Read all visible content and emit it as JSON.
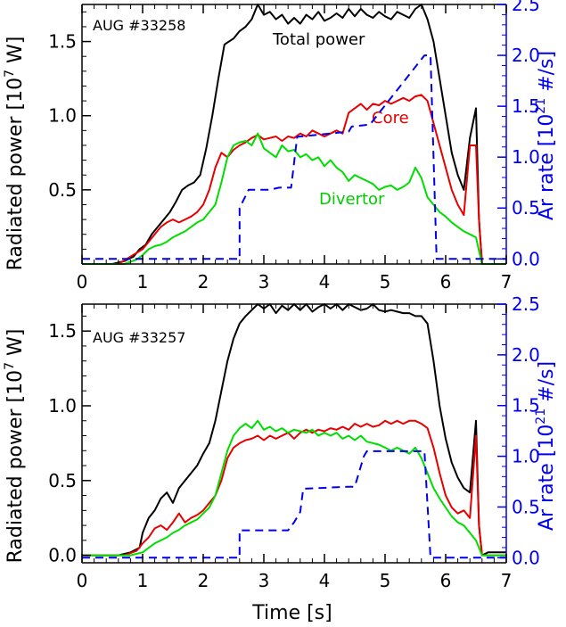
{
  "colors": {
    "total": "#000000",
    "core": "#e60000",
    "divertor": "#00dd00",
    "ar": "#0000ee",
    "axis": "#000000",
    "axis_right": "#0000ee"
  },
  "x_axis_label": "Time [s]",
  "y_left_label_parts": [
    "Radiated power [10",
    "7",
    " W]"
  ],
  "y_right_label_parts": [
    "Ar rate [10",
    "21",
    " #/s]"
  ],
  "chart_data": [
    {
      "type": "line",
      "title": "AUG #33258",
      "xlim": [
        0,
        7
      ],
      "ylim_left": [
        0,
        1.75
      ],
      "ylim_right": [
        -0.05,
        2.5
      ],
      "x_ticks": [
        "0",
        "1",
        "2",
        "3",
        "4",
        "5",
        "6",
        "7"
      ],
      "y_left_ticks": [
        "0.5",
        "1.0",
        "1.5"
      ],
      "y_right_ticks": [
        "0.0",
        "0.5",
        "1.0",
        "1.5",
        "2.0",
        "2.5"
      ],
      "series_labels": {
        "total": "Total power",
        "core": "Core",
        "divertor": "Divertor"
      },
      "series": [
        {
          "key": "total",
          "axis": "left",
          "dash": false,
          "x": [
            0.0,
            0.5,
            0.7,
            0.85,
            0.95,
            1.05,
            1.15,
            1.25,
            1.35,
            1.45,
            1.55,
            1.65,
            1.75,
            1.85,
            1.95,
            2.05,
            2.15,
            2.25,
            2.35,
            2.5,
            2.6,
            2.7,
            2.8,
            2.9,
            3.0,
            3.1,
            3.2,
            3.3,
            3.4,
            3.5,
            3.6,
            3.7,
            3.8,
            3.9,
            4.0,
            4.1,
            4.2,
            4.3,
            4.4,
            4.5,
            4.6,
            4.7,
            4.8,
            4.9,
            5.0,
            5.1,
            5.2,
            5.3,
            5.4,
            5.5,
            5.6,
            5.7,
            5.8,
            5.9,
            6.0,
            6.1,
            6.2,
            6.3,
            6.4,
            6.5,
            6.55,
            6.6,
            7.0
          ],
          "y": [
            0.0,
            0.0,
            0.02,
            0.05,
            0.1,
            0.13,
            0.2,
            0.25,
            0.3,
            0.35,
            0.42,
            0.5,
            0.53,
            0.55,
            0.6,
            0.78,
            1.0,
            1.25,
            1.48,
            1.52,
            1.57,
            1.6,
            1.65,
            1.75,
            1.68,
            1.7,
            1.65,
            1.68,
            1.62,
            1.66,
            1.62,
            1.68,
            1.65,
            1.7,
            1.64,
            1.66,
            1.69,
            1.66,
            1.72,
            1.67,
            1.72,
            1.68,
            1.66,
            1.7,
            1.67,
            1.65,
            1.7,
            1.68,
            1.66,
            1.72,
            1.75,
            1.65,
            1.5,
            1.25,
            1.0,
            0.75,
            0.6,
            0.5,
            0.85,
            1.05,
            0.3,
            0.0,
            0.0
          ]
        },
        {
          "key": "core",
          "axis": "left",
          "dash": false,
          "x": [
            0.0,
            0.6,
            0.8,
            1.0,
            1.1,
            1.2,
            1.3,
            1.4,
            1.5,
            1.6,
            1.7,
            1.8,
            1.9,
            2.0,
            2.1,
            2.2,
            2.3,
            2.4,
            2.5,
            2.6,
            2.7,
            2.8,
            2.9,
            3.0,
            3.1,
            3.2,
            3.3,
            3.4,
            3.5,
            3.6,
            3.7,
            3.8,
            3.9,
            4.0,
            4.1,
            4.2,
            4.3,
            4.4,
            4.5,
            4.6,
            4.7,
            4.8,
            4.9,
            5.0,
            5.1,
            5.2,
            5.3,
            5.4,
            5.5,
            5.6,
            5.7,
            5.8,
            5.9,
            6.0,
            6.1,
            6.2,
            6.3,
            6.4,
            6.5,
            6.55,
            6.6,
            7.0
          ],
          "y": [
            0.0,
            0.0,
            0.05,
            0.1,
            0.15,
            0.2,
            0.25,
            0.28,
            0.3,
            0.28,
            0.3,
            0.32,
            0.35,
            0.4,
            0.5,
            0.65,
            0.75,
            0.72,
            0.77,
            0.8,
            0.82,
            0.85,
            0.87,
            0.84,
            0.85,
            0.86,
            0.83,
            0.86,
            0.85,
            0.88,
            0.86,
            0.9,
            0.88,
            0.86,
            0.88,
            0.9,
            0.88,
            1.02,
            1.05,
            1.08,
            1.04,
            1.08,
            1.07,
            1.1,
            1.08,
            1.1,
            1.12,
            1.1,
            1.13,
            1.14,
            1.1,
            0.95,
            0.8,
            0.65,
            0.5,
            0.4,
            0.33,
            0.8,
            0.8,
            0.3,
            0.0,
            0.0
          ]
        },
        {
          "key": "divertor",
          "axis": "left",
          "dash": false,
          "x": [
            0.0,
            0.7,
            0.9,
            1.0,
            1.1,
            1.2,
            1.3,
            1.4,
            1.5,
            1.6,
            1.7,
            1.8,
            1.9,
            2.0,
            2.1,
            2.2,
            2.3,
            2.4,
            2.5,
            2.6,
            2.7,
            2.8,
            2.9,
            3.0,
            3.1,
            3.2,
            3.3,
            3.4,
            3.5,
            3.6,
            3.7,
            3.8,
            3.9,
            4.0,
            4.1,
            4.2,
            4.3,
            4.4,
            4.5,
            4.6,
            4.7,
            4.8,
            4.9,
            5.0,
            5.1,
            5.2,
            5.3,
            5.4,
            5.5,
            5.6,
            5.7,
            5.8,
            5.9,
            6.0,
            6.1,
            6.2,
            6.3,
            6.4,
            6.5,
            6.6,
            7.0
          ],
          "y": [
            0.0,
            0.0,
            0.03,
            0.06,
            0.1,
            0.12,
            0.13,
            0.15,
            0.18,
            0.2,
            0.22,
            0.25,
            0.28,
            0.3,
            0.35,
            0.4,
            0.55,
            0.72,
            0.8,
            0.82,
            0.83,
            0.8,
            0.88,
            0.78,
            0.75,
            0.72,
            0.8,
            0.76,
            0.77,
            0.72,
            0.74,
            0.7,
            0.72,
            0.66,
            0.7,
            0.65,
            0.62,
            0.56,
            0.6,
            0.58,
            0.56,
            0.54,
            0.5,
            0.52,
            0.53,
            0.5,
            0.52,
            0.55,
            0.65,
            0.58,
            0.45,
            0.4,
            0.35,
            0.32,
            0.28,
            0.25,
            0.22,
            0.2,
            0.18,
            0.0,
            0.0
          ]
        },
        {
          "key": "ar",
          "axis": "right",
          "dash": true,
          "x": [
            0.0,
            2.6,
            2.6,
            2.75,
            3.1,
            3.25,
            3.45,
            3.55,
            4.4,
            4.45,
            4.75,
            5.65,
            5.75,
            5.85,
            7.0
          ],
          "y": [
            0.0,
            0.0,
            0.5,
            0.68,
            0.68,
            0.7,
            0.7,
            1.2,
            1.25,
            1.3,
            1.32,
            2.0,
            2.0,
            0.0,
            0.0
          ]
        }
      ]
    },
    {
      "type": "line",
      "title": "AUG #33257",
      "xlim": [
        0,
        7
      ],
      "ylim_left": [
        -0.05,
        1.68
      ],
      "ylim_right": [
        -0.05,
        2.5
      ],
      "x_ticks": [
        "0",
        "1",
        "2",
        "3",
        "4",
        "5",
        "6",
        "7"
      ],
      "x_label": "Time [s]",
      "y_left_ticks": [
        "0.0",
        "0.5",
        "1.0",
        "1.5"
      ],
      "y_right_ticks": [
        "0.0",
        "0.5",
        "1.0",
        "1.5",
        "2.0",
        "2.5"
      ],
      "series": [
        {
          "key": "total",
          "axis": "left",
          "dash": false,
          "x": [
            0.0,
            0.6,
            0.8,
            0.95,
            1.0,
            1.1,
            1.2,
            1.3,
            1.4,
            1.5,
            1.6,
            1.7,
            1.8,
            1.9,
            2.0,
            2.1,
            2.2,
            2.3,
            2.4,
            2.5,
            2.6,
            2.7,
            2.8,
            2.9,
            3.0,
            3.1,
            3.2,
            3.3,
            3.4,
            3.5,
            3.6,
            3.7,
            3.8,
            3.9,
            4.0,
            4.1,
            4.2,
            4.3,
            4.4,
            4.5,
            4.6,
            4.7,
            4.8,
            4.9,
            5.0,
            5.1,
            5.2,
            5.3,
            5.4,
            5.5,
            5.6,
            5.7,
            5.8,
            5.9,
            6.0,
            6.1,
            6.2,
            6.3,
            6.4,
            6.5,
            6.55,
            6.6,
            6.7,
            7.0
          ],
          "y": [
            0.0,
            0.0,
            0.02,
            0.05,
            0.15,
            0.25,
            0.3,
            0.38,
            0.42,
            0.35,
            0.45,
            0.5,
            0.55,
            0.6,
            0.68,
            0.75,
            0.9,
            1.1,
            1.3,
            1.45,
            1.55,
            1.6,
            1.64,
            1.68,
            1.65,
            1.68,
            1.62,
            1.67,
            1.64,
            1.68,
            1.64,
            1.68,
            1.63,
            1.66,
            1.68,
            1.65,
            1.68,
            1.64,
            1.68,
            1.66,
            1.64,
            1.65,
            1.68,
            1.64,
            1.63,
            1.64,
            1.63,
            1.62,
            1.62,
            1.6,
            1.6,
            1.55,
            1.3,
            1.0,
            0.78,
            0.62,
            0.52,
            0.45,
            0.42,
            0.9,
            0.2,
            0.0,
            0.02,
            0.02
          ]
        },
        {
          "key": "core",
          "axis": "left",
          "dash": false,
          "x": [
            0.0,
            0.7,
            0.9,
            1.0,
            1.1,
            1.2,
            1.3,
            1.4,
            1.5,
            1.6,
            1.7,
            1.8,
            1.9,
            2.0,
            2.1,
            2.2,
            2.3,
            2.4,
            2.5,
            2.6,
            2.7,
            2.8,
            2.9,
            3.0,
            3.1,
            3.2,
            3.3,
            3.4,
            3.5,
            3.6,
            3.7,
            3.8,
            3.9,
            4.0,
            4.1,
            4.2,
            4.3,
            4.4,
            4.5,
            4.6,
            4.7,
            4.8,
            4.9,
            5.0,
            5.1,
            5.2,
            5.3,
            5.4,
            5.5,
            5.6,
            5.7,
            5.8,
            5.9,
            6.0,
            6.1,
            6.2,
            6.3,
            6.4,
            6.5,
            6.55,
            6.6,
            7.0
          ],
          "y": [
            0.0,
            0.0,
            0.03,
            0.08,
            0.12,
            0.18,
            0.2,
            0.17,
            0.22,
            0.28,
            0.22,
            0.25,
            0.27,
            0.3,
            0.35,
            0.4,
            0.5,
            0.65,
            0.72,
            0.75,
            0.77,
            0.78,
            0.8,
            0.77,
            0.8,
            0.78,
            0.8,
            0.82,
            0.78,
            0.82,
            0.84,
            0.82,
            0.84,
            0.83,
            0.85,
            0.84,
            0.86,
            0.84,
            0.88,
            0.86,
            0.88,
            0.86,
            0.87,
            0.9,
            0.88,
            0.9,
            0.88,
            0.9,
            0.9,
            0.88,
            0.85,
            0.72,
            0.55,
            0.4,
            0.32,
            0.28,
            0.3,
            0.25,
            0.8,
            0.2,
            0.0,
            0.0
          ]
        },
        {
          "key": "divertor",
          "axis": "left",
          "dash": false,
          "x": [
            0.0,
            0.8,
            1.0,
            1.1,
            1.2,
            1.3,
            1.4,
            1.5,
            1.6,
            1.7,
            1.8,
            1.9,
            2.0,
            2.1,
            2.2,
            2.3,
            2.4,
            2.5,
            2.6,
            2.7,
            2.8,
            2.9,
            3.0,
            3.1,
            3.2,
            3.3,
            3.4,
            3.5,
            3.6,
            3.7,
            3.8,
            3.9,
            4.0,
            4.1,
            4.2,
            4.3,
            4.4,
            4.5,
            4.6,
            4.7,
            4.8,
            4.9,
            5.0,
            5.1,
            5.2,
            5.3,
            5.4,
            5.5,
            5.6,
            5.7,
            5.8,
            5.9,
            6.0,
            6.1,
            6.2,
            6.3,
            6.4,
            6.5,
            6.6,
            7.0
          ],
          "y": [
            0.0,
            0.0,
            0.02,
            0.05,
            0.08,
            0.1,
            0.12,
            0.15,
            0.17,
            0.2,
            0.22,
            0.24,
            0.28,
            0.32,
            0.4,
            0.55,
            0.7,
            0.8,
            0.85,
            0.88,
            0.85,
            0.9,
            0.84,
            0.86,
            0.83,
            0.85,
            0.82,
            0.84,
            0.83,
            0.82,
            0.84,
            0.8,
            0.82,
            0.8,
            0.82,
            0.78,
            0.8,
            0.77,
            0.8,
            0.76,
            0.75,
            0.74,
            0.72,
            0.7,
            0.72,
            0.7,
            0.68,
            0.72,
            0.65,
            0.55,
            0.45,
            0.38,
            0.32,
            0.26,
            0.22,
            0.2,
            0.15,
            0.1,
            0.0,
            0.0
          ]
        },
        {
          "key": "ar",
          "axis": "right",
          "dash": true,
          "x": [
            0.0,
            2.6,
            2.6,
            2.7,
            3.4,
            3.5,
            3.6,
            3.65,
            4.4,
            4.5,
            4.65,
            4.7,
            5.6,
            5.65,
            5.75,
            7.0
          ],
          "y": [
            0.0,
            0.0,
            0.27,
            0.27,
            0.27,
            0.35,
            0.45,
            0.68,
            0.7,
            0.7,
            1.0,
            1.05,
            1.05,
            1.05,
            0.0,
            0.0
          ]
        }
      ]
    }
  ]
}
